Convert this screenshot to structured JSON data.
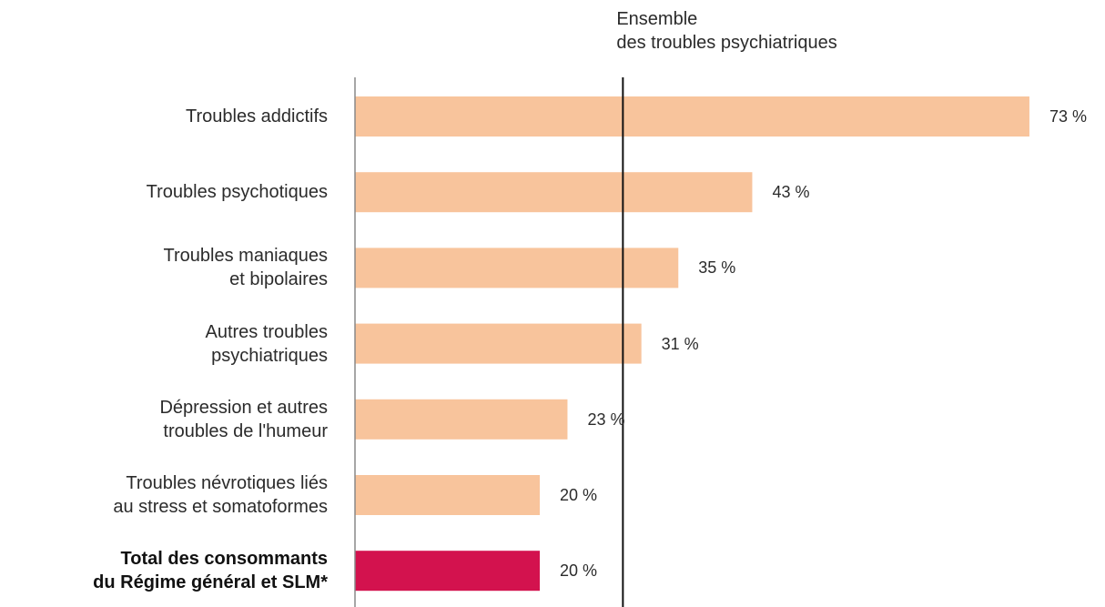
{
  "chart_data": {
    "type": "bar",
    "orientation": "horizontal",
    "categories": [
      "Troubles addictifs",
      "Troubles psychotiques",
      "Troubles maniaques\net bipolaires",
      "Autres troubles\npsychiatriques",
      "Dépression et autres\ntroubles de l'humeur",
      "Troubles névrotiques liés\nau stress et somatoformes",
      "Total des consommants\ndu Régime général et SLM*"
    ],
    "values": [
      73,
      43,
      35,
      31,
      23,
      20,
      20
    ],
    "value_labels": [
      "73 %",
      "43 %",
      "35 %",
      "31 %",
      "23 %",
      "20 %",
      "20 %"
    ],
    "colors": [
      "#f8c49c",
      "#f8c49c",
      "#f8c49c",
      "#f8c49c",
      "#f8c49c",
      "#f8c49c",
      "#d3124e"
    ],
    "xlim": [
      0,
      80
    ],
    "reference_line": {
      "value": 29,
      "label": "Ensemble\ndes troubles psychiatriques"
    }
  }
}
